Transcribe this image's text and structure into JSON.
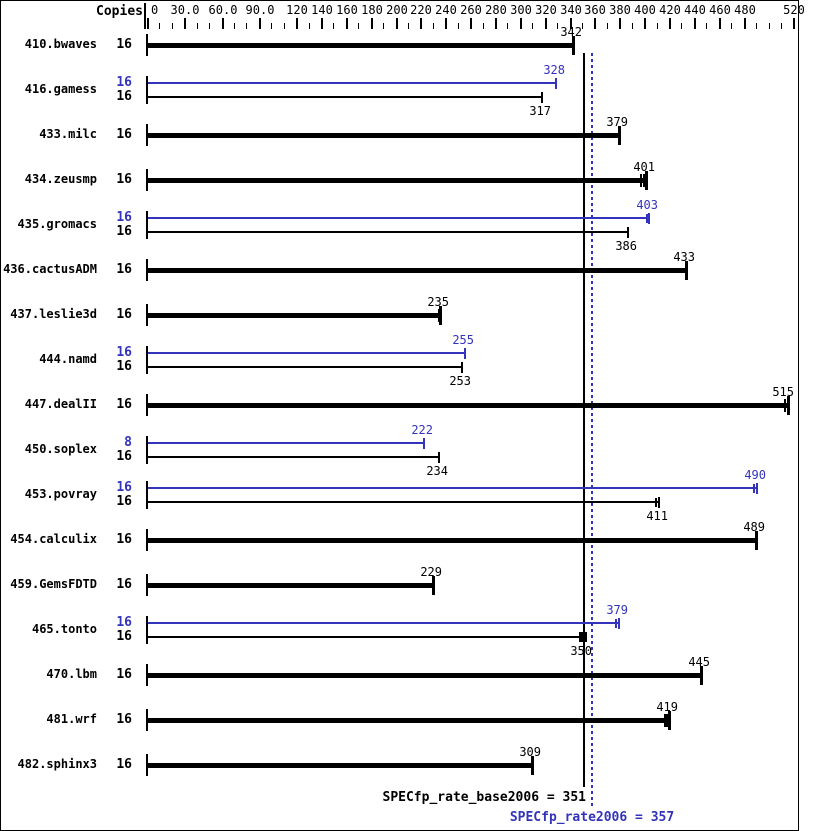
{
  "chart_data": {
    "type": "bar",
    "orientation": "horizontal",
    "copies_header": "Copies",
    "xlim": [
      0,
      520
    ],
    "grid": false,
    "colors": {
      "base": "#000000",
      "peak": "#3333bb"
    },
    "axis": {
      "tick_step": 10,
      "max": 520,
      "labels": [
        {
          "v": 0,
          "t": "0"
        },
        {
          "v": 30,
          "t": "30.0"
        },
        {
          "v": 60,
          "t": "60.0"
        },
        {
          "v": 90,
          "t": "90.0"
        },
        {
          "v": 120,
          "t": "120"
        },
        {
          "v": 140,
          "t": "140"
        },
        {
          "v": 160,
          "t": "160"
        },
        {
          "v": 180,
          "t": "180"
        },
        {
          "v": 200,
          "t": "200"
        },
        {
          "v": 220,
          "t": "220"
        },
        {
          "v": 240,
          "t": "240"
        },
        {
          "v": 260,
          "t": "260"
        },
        {
          "v": 280,
          "t": "280"
        },
        {
          "v": 300,
          "t": "300"
        },
        {
          "v": 320,
          "t": "320"
        },
        {
          "v": 340,
          "t": "340"
        },
        {
          "v": 360,
          "t": "360"
        },
        {
          "v": 380,
          "t": "380"
        },
        {
          "v": 400,
          "t": "400"
        },
        {
          "v": 420,
          "t": "420"
        },
        {
          "v": 440,
          "t": "440"
        },
        {
          "v": 460,
          "t": "460"
        },
        {
          "v": 480,
          "t": "480"
        },
        {
          "v": 520,
          "t": "520"
        }
      ]
    },
    "categories": [
      "410.bwaves",
      "416.gamess",
      "433.milc",
      "434.zeusmp",
      "435.gromacs",
      "436.cactusADM",
      "437.leslie3d",
      "444.namd",
      "447.dealII",
      "450.soplex",
      "453.povray",
      "454.calculix",
      "459.GemsFDTD",
      "465.tonto",
      "470.lbm",
      "481.wrf",
      "482.sphinx3"
    ],
    "series": [
      {
        "name": "base",
        "color": "#000000",
        "values": [
          342,
          317,
          379,
          401,
          386,
          433,
          235,
          253,
          515,
          234,
          411,
          489,
          229,
          350,
          445,
          419,
          309
        ],
        "copies": [
          16,
          16,
          16,
          16,
          16,
          16,
          16,
          16,
          16,
          16,
          16,
          16,
          16,
          16,
          16,
          16,
          16
        ]
      },
      {
        "name": "peak",
        "color": "#3333bb",
        "values": [
          null,
          328,
          null,
          null,
          403,
          null,
          null,
          255,
          null,
          222,
          490,
          null,
          null,
          379,
          null,
          null,
          null
        ],
        "copies": [
          null,
          16,
          null,
          null,
          16,
          null,
          null,
          16,
          null,
          8,
          16,
          null,
          null,
          16,
          null,
          null,
          null
        ]
      }
    ],
    "rows": [
      {
        "name": "410.bwaves",
        "bars": [
          {
            "series": "base",
            "copies": "16",
            "value": 342,
            "label_pos": "above"
          }
        ]
      },
      {
        "name": "416.gamess",
        "bars": [
          {
            "series": "peak",
            "copies": "16",
            "value": 328,
            "label_pos": "above"
          },
          {
            "series": "base",
            "copies": "16",
            "value": 317,
            "label_pos": "below"
          }
        ]
      },
      {
        "name": "433.milc",
        "bars": [
          {
            "series": "base",
            "copies": "16",
            "value": 379,
            "label_pos": "above"
          }
        ]
      },
      {
        "name": "434.zeusmp",
        "bars": [
          {
            "series": "base",
            "copies": "16",
            "value": 401,
            "label_pos": "above",
            "marks": [
              396,
              398
            ]
          }
        ]
      },
      {
        "name": "435.gromacs",
        "bars": [
          {
            "series": "peak",
            "copies": "16",
            "value": 403,
            "label_pos": "above",
            "marks": [
              401
            ]
          },
          {
            "series": "base",
            "copies": "16",
            "value": 386,
            "label_pos": "below"
          }
        ]
      },
      {
        "name": "436.cactusADM",
        "bars": [
          {
            "series": "base",
            "copies": "16",
            "value": 433,
            "label_pos": "above"
          }
        ]
      },
      {
        "name": "437.leslie3d",
        "bars": [
          {
            "series": "base",
            "copies": "16",
            "value": 235,
            "label_pos": "above",
            "marks": [
              233
            ]
          }
        ]
      },
      {
        "name": "444.namd",
        "bars": [
          {
            "series": "peak",
            "copies": "16",
            "value": 255,
            "label_pos": "above"
          },
          {
            "series": "base",
            "copies": "16",
            "value": 253,
            "label_pos": "below"
          }
        ]
      },
      {
        "name": "447.dealII",
        "bars": [
          {
            "series": "base",
            "copies": "16",
            "value": 515,
            "label_pos": "above",
            "marks": [
              512,
              514
            ]
          }
        ]
      },
      {
        "name": "450.soplex",
        "bars": [
          {
            "series": "peak",
            "copies": "8",
            "value": 222,
            "label_pos": "above"
          },
          {
            "series": "base",
            "copies": "16",
            "value": 234,
            "label_pos": "below"
          }
        ]
      },
      {
        "name": "453.povray",
        "bars": [
          {
            "series": "peak",
            "copies": "16",
            "value": 490,
            "label_pos": "above",
            "marks": [
              487,
              489
            ]
          },
          {
            "series": "base",
            "copies": "16",
            "value": 411,
            "label_pos": "below",
            "marks": [
              408,
              410
            ]
          }
        ]
      },
      {
        "name": "454.calculix",
        "bars": [
          {
            "series": "base",
            "copies": "16",
            "value": 489,
            "label_pos": "above"
          }
        ]
      },
      {
        "name": "459.GemsFDTD",
        "bars": [
          {
            "series": "base",
            "copies": "16",
            "value": 229,
            "label_pos": "above"
          }
        ]
      },
      {
        "name": "465.tonto",
        "bars": [
          {
            "series": "peak",
            "copies": "16",
            "value": 379,
            "label_pos": "above",
            "marks": [
              376,
              378
            ]
          },
          {
            "series": "base",
            "copies": "16",
            "value": 350,
            "label_pos": "below",
            "cap": "square"
          }
        ]
      },
      {
        "name": "470.lbm",
        "bars": [
          {
            "series": "base",
            "copies": "16",
            "value": 445,
            "label_pos": "above"
          }
        ]
      },
      {
        "name": "481.wrf",
        "bars": [
          {
            "series": "base",
            "copies": "16",
            "value": 419,
            "label_pos": "above",
            "marks": [
              415,
              417
            ]
          }
        ]
      },
      {
        "name": "482.sphinx3",
        "bars": [
          {
            "series": "base",
            "copies": "16",
            "value": 309,
            "label_pos": "above"
          }
        ]
      }
    ],
    "reference_lines": [
      {
        "name": "base",
        "style": "solid",
        "value": 351,
        "color": "#000000",
        "label": "SPECfp_rate_base2006 = 351"
      },
      {
        "name": "peak",
        "style": "dotted",
        "value": 357,
        "color": "#3333bb",
        "label": "SPECfp_rate2006 = 357"
      }
    ]
  }
}
